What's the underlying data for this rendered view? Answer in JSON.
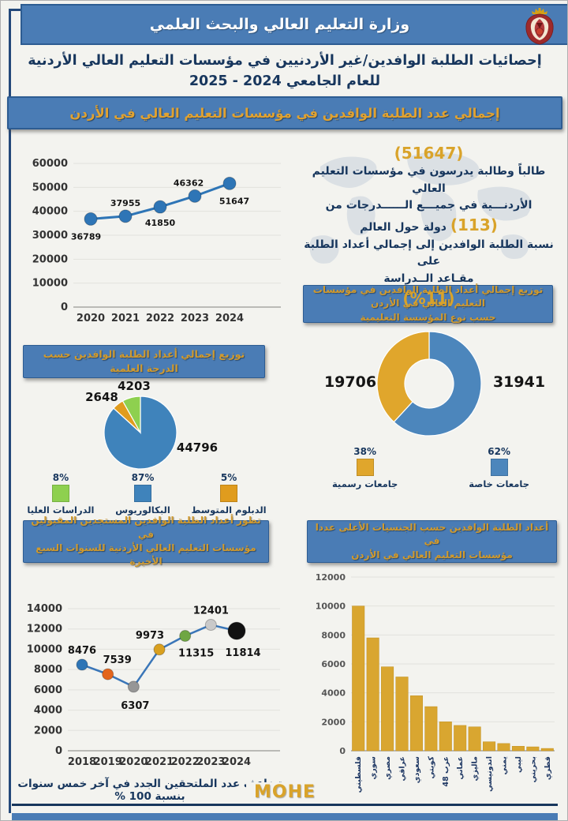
{
  "page": {
    "ministry": "وزارة التعليم العالي والبحث العلمي",
    "title_line1": "إحصائيات الطلبة الوافدين/غير الأردنيين في مؤسسات التعليم العالي الأردنية",
    "title_line2": "للعام الجامعي 2024 - 2025",
    "banner": "إجمالي عدد الطلبة الوافدين في مؤسسات التعليم العالي في الأردن",
    "footer": "MOHE"
  },
  "summary": {
    "total": "(51647)",
    "line1": "طالباً وطالبة يدرسون في مؤسسات التعليم العالي",
    "line2": "الأردنـــية في جميـــع الــــــدرجات من",
    "countries": "(113)",
    "countries_text": "دولة حول العالم",
    "line3": "نسبة الطلبة الوافدين إلى إجمالي أعداد الطلبة على",
    "line4": "مقـاعد الــدراسة",
    "percent": "(%11)"
  },
  "colors": {
    "header_blue": "#4a7cb5",
    "header_border": "#2d5c92",
    "navy_text": "#17365d",
    "gold_text": "#d9a32a",
    "line_blue": "#2e75b6",
    "bar_gold": "#d9a630"
  },
  "chart_data": [
    {
      "id": "total-trend",
      "type": "line",
      "title": "إجمالي عدد الطلبة الوافدين في مؤسسات التعليم العالي في الأردن",
      "x": [
        "2020",
        "2021",
        "2022",
        "2023",
        "2024"
      ],
      "values": [
        36789,
        37955,
        41850,
        46362,
        51647
      ],
      "ylim": [
        0,
        60000
      ],
      "ytick": 10000,
      "line_color": "#2e75b6",
      "grid": true,
      "legend_position": "none"
    },
    {
      "id": "institution-donut",
      "type": "donut",
      "title_line1": "توزيع إجمالي أعداد الطلبة الوافدين في مؤسسات التعليم العالي في الأردن",
      "title_line2": "حسب نوع المؤسسة التعليمية",
      "slices": [
        {
          "label": "جامعات خاصة",
          "value": 31941,
          "pct": "62%",
          "color": "#4c86bc"
        },
        {
          "label": "جامعات رسمية",
          "value": 19706,
          "pct": "38%",
          "color": "#e0a62c"
        }
      ],
      "legend_order": [
        1,
        0
      ],
      "legend_position": "bottom"
    },
    {
      "id": "degree-pie",
      "type": "pie",
      "title": "توزيع إجمالي أعداد الطلبة الوافدين حسب الدرجة العلمية",
      "slices": [
        {
          "label": "البكالوريوس",
          "value": 44796,
          "pct": "87%",
          "color": "#3f83bb"
        },
        {
          "label": "الدبلوم المتوسط",
          "value": 2648,
          "pct": "5%",
          "color": "#e09c1e"
        },
        {
          "label": "الدراسات العليا",
          "value": 4203,
          "pct": "8%",
          "color": "#8ed04f"
        }
      ],
      "legend_order": [
        2,
        0,
        1
      ],
      "legend_position": "bottom"
    },
    {
      "id": "new-students",
      "type": "line",
      "title_line1": "تطور أعداد الطلبة الوافدين المستجدين المقبولين في",
      "title_line2": "مؤسسات التعليم العالي الأردنية للسنوات السبع الأخيرة",
      "x": [
        "2018",
        "2019",
        "2020",
        "2021",
        "2022",
        "2023",
        "2024"
      ],
      "values": [
        8476,
        7539,
        6307,
        9973,
        11315,
        12401,
        11814
      ],
      "point_colors": [
        "#2e75b6",
        "#e3651d",
        "#969696",
        "#d9a01f",
        "#6fa643",
        "#c9c9c9",
        "#111111"
      ],
      "ylim": [
        0,
        14000
      ],
      "ytick": 2000,
      "line_color": "#3a76b8",
      "grid": true,
      "caption": "تضاعف عدد الملتحقين الجدد في آخر خمس سنوات بنسبة 100 %"
    },
    {
      "id": "nationalities",
      "type": "bar",
      "title_line1": "أعداد الطلبة الوافدين حسب الجنسيات الأعلى عددا في",
      "title_line2": "مؤسسات التعليم العالي في الأردن",
      "categories": [
        "فلسطيني",
        "سوري",
        "مصري",
        "عراقي",
        "سعودي",
        "كويتي",
        "عرب 48",
        "عماني",
        "ماليزي",
        "اندونيسي",
        "يمني",
        "ليبي",
        "بحريني",
        "قطري"
      ],
      "values": [
        10000,
        7800,
        5800,
        5100,
        3800,
        3050,
        2000,
        1750,
        1650,
        620,
        500,
        310,
        270,
        160
      ],
      "ylim": [
        0,
        12000
      ],
      "ytick": 2000,
      "bar_color": "#d9a630",
      "grid": true
    }
  ]
}
